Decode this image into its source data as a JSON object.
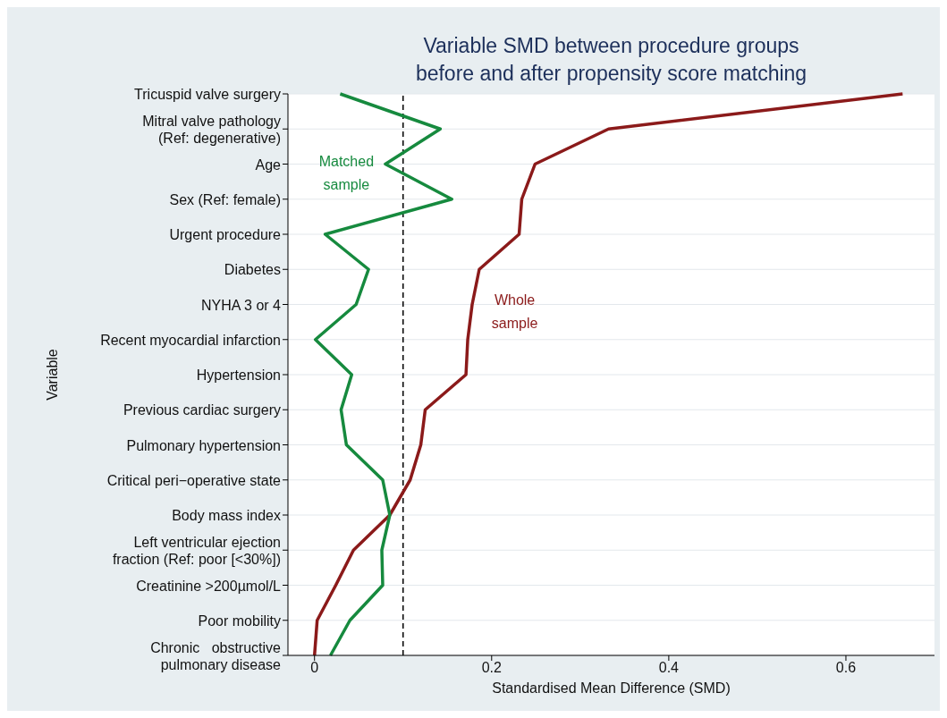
{
  "chart_data": {
    "type": "line",
    "title": "Variable SMD between procedure groups\nbefore and after propensity score matching",
    "xlabel": "Standardised Mean Difference (SMD)",
    "ylabel": "Variable",
    "orientation": "horizontal",
    "categories": [
      "Tricuspid valve surgery",
      "Mitral valve pathology\n(Ref: degenerative)",
      "Age",
      "Sex (Ref: female)",
      "Urgent procedure",
      "Diabetes",
      "NYHA 3 or 4",
      "Recent myocardial infarction",
      "Hypertension",
      "Previous cardiac surgery",
      "Pulmonary hypertension",
      "Critical peri−operative state",
      "Body mass index",
      "Left ventricular ejection\nfraction (Ref: poor [<30%])",
      "Creatinine >200µmol/L",
      "Poor mobility",
      "Chronic   obstructive\npulmonary disease"
    ],
    "series": [
      {
        "name": "Whole\nsample",
        "color": "#8b1a1a",
        "values": [
          0.664,
          0.332,
          0.249,
          0.234,
          0.231,
          0.186,
          0.178,
          0.173,
          0.171,
          0.125,
          0.12,
          0.108,
          0.085,
          0.044,
          0.024,
          0.003,
          0.0
        ]
      },
      {
        "name": "Matched\nsample",
        "color": "#168a3e",
        "values": [
          0.029,
          0.142,
          0.08,
          0.155,
          0.012,
          0.061,
          0.047,
          0.001,
          0.042,
          0.03,
          0.036,
          0.077,
          0.085,
          0.076,
          0.077,
          0.04,
          0.018
        ]
      }
    ],
    "xlim": [
      -0.03,
      0.7
    ],
    "xticks": [
      0,
      0.2,
      0.4,
      0.6
    ],
    "grid": "y",
    "marker": "none",
    "line_style": "solid",
    "ref_lines": [
      {
        "axis": "x",
        "value": 0.1,
        "line_style": "dashed",
        "color": "#000000"
      }
    ]
  }
}
